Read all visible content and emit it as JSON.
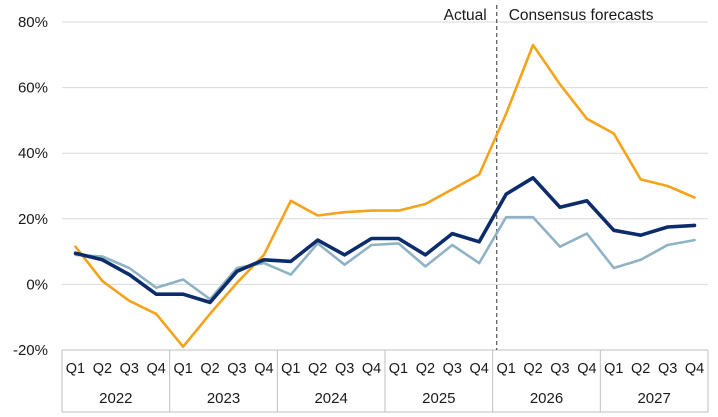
{
  "chart_data": {
    "type": "line",
    "title": "",
    "xlabel": "",
    "ylabel": "",
    "ylim": [
      -20,
      80
    ],
    "y_tick_labels": [
      "80%",
      "60%",
      "40%",
      "20%",
      "0%",
      "-20%"
    ],
    "y_tick_values": [
      80,
      60,
      40,
      20,
      0,
      -20
    ],
    "grid": "horizontal",
    "legend": "none",
    "quarter_labels": [
      "Q1",
      "Q2",
      "Q3",
      "Q4"
    ],
    "years": [
      "2022",
      "2023",
      "2024",
      "2025",
      "2026",
      "2027"
    ],
    "annotations": {
      "actual": "Actual",
      "forecast": "Consensus forecasts"
    },
    "series": [
      {
        "color": "#f5a31a",
        "values": [
          11.5,
          1,
          -5,
          -9,
          -19,
          -9,
          0.5,
          9,
          25.5,
          21,
          22,
          22.5,
          22.5,
          24.5,
          29,
          33.5,
          52,
          73,
          61,
          50.5,
          46,
          32,
          30,
          26.5
        ]
      },
      {
        "color": "#0d2c6c",
        "values": [
          9.5,
          7.5,
          3,
          -3,
          -3,
          -5.5,
          4,
          7.5,
          7,
          13.5,
          9,
          14,
          14,
          9,
          15.5,
          13,
          27.5,
          32.5,
          23.5,
          25.5,
          16.5,
          15,
          17.5,
          18
        ]
      },
      {
        "color": "#8fb3c4",
        "values": [
          9,
          8.5,
          5,
          -1,
          1.5,
          -4.5,
          5,
          6.5,
          3,
          12.5,
          6,
          12,
          12.5,
          5.5,
          12,
          6.5,
          20.5,
          20.5,
          11.5,
          15.5,
          5,
          7.5,
          12,
          13.5
        ]
      }
    ]
  }
}
